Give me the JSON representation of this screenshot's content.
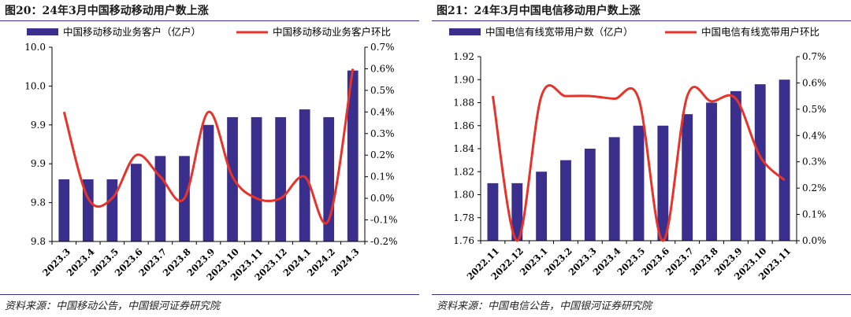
{
  "left": {
    "title": "图20：24年3月中国移动移动用户数上涨",
    "source": "资料来源：中国移动公告，中国银河证券研究院",
    "chart_data": {
      "type": "bar",
      "categories": [
        "2023.3",
        "2023.4",
        "2023.5",
        "2023.6",
        "2023.7",
        "2023.8",
        "2023.9",
        "2023.10",
        "2023.11",
        "2023.12",
        "2024.1",
        "2024.2",
        "2024.3"
      ],
      "series": [
        {
          "name": "中国移动移动业务客户（亿户）",
          "type": "bar",
          "axis": "left",
          "color": "#3b2f8e",
          "values": [
            9.83,
            9.83,
            9.83,
            9.85,
            9.86,
            9.86,
            9.9,
            9.91,
            9.91,
            9.91,
            9.92,
            9.91,
            9.97
          ]
        },
        {
          "name": "中国移动移动业务客户环比",
          "type": "line",
          "axis": "right",
          "color": "#e8332a",
          "values": [
            0.4,
            0.0,
            0.0,
            0.2,
            0.1,
            0.0,
            0.4,
            0.1,
            0.0,
            0.0,
            0.1,
            -0.1,
            0.6
          ]
        }
      ],
      "y_left": {
        "min": 9.75,
        "max": 10.0,
        "tick_values": [
          9.75,
          9.8,
          9.85,
          9.9,
          9.95,
          10.0
        ],
        "tick_labels": [
          "9.8",
          "9.8",
          "9.9",
          "9.9",
          "10.0",
          "10.0"
        ]
      },
      "y_right": {
        "min": -0.2,
        "max": 0.7,
        "ticks": [
          -0.2,
          -0.1,
          0.0,
          0.1,
          0.2,
          0.3,
          0.4,
          0.5,
          0.6,
          0.7
        ],
        "tick_labels": [
          "-0.2%",
          "-0.1%",
          "0.0%",
          "0.1%",
          "0.2%",
          "0.3%",
          "0.4%",
          "0.5%",
          "0.6%",
          "0.7%"
        ]
      },
      "grid": false,
      "legend": "top"
    }
  },
  "right": {
    "title": "图21：24年3月中国电信移动用户数上涨",
    "source": "资料来源：中国电信公告，中国银河证券研究院",
    "chart_data": {
      "type": "bar",
      "categories": [
        "2022.11",
        "2022.12",
        "2023.1",
        "2023.2",
        "2023.3",
        "2023.4",
        "2023.5",
        "2023.6",
        "2023.7",
        "2023.8",
        "2023.9",
        "2023.10",
        "2023.11"
      ],
      "series": [
        {
          "name": "中国电信有线宽带用户数（亿户）",
          "type": "bar",
          "axis": "left",
          "color": "#3b2f8e",
          "values": [
            1.81,
            1.81,
            1.82,
            1.83,
            1.84,
            1.85,
            1.86,
            1.86,
            1.87,
            1.88,
            1.89,
            1.896,
            1.9
          ]
        },
        {
          "name": "中国电信有线宽带用户环比",
          "type": "line",
          "axis": "right",
          "color": "#e8332a",
          "values": [
            0.55,
            0.0,
            0.55,
            0.55,
            0.55,
            0.54,
            0.54,
            0.0,
            0.55,
            0.53,
            0.54,
            0.32,
            0.23
          ]
        }
      ],
      "y_left": {
        "min": 1.76,
        "max": 1.92,
        "tick_values": [
          1.76,
          1.78,
          1.8,
          1.82,
          1.84,
          1.86,
          1.88,
          1.9,
          1.92
        ],
        "tick_labels": [
          "1.76",
          "1.78",
          "1.80",
          "1.82",
          "1.84",
          "1.86",
          "1.88",
          "1.90",
          "1.92"
        ]
      },
      "y_right": {
        "min": 0.0,
        "max": 0.7,
        "ticks": [
          0.0,
          0.1,
          0.2,
          0.3,
          0.4,
          0.5,
          0.6,
          0.7
        ],
        "tick_labels": [
          "0.0%",
          "0.1%",
          "0.2%",
          "0.3%",
          "0.4%",
          "0.5%",
          "0.6%",
          "0.7%"
        ]
      },
      "grid": false,
      "legend": "top"
    }
  }
}
